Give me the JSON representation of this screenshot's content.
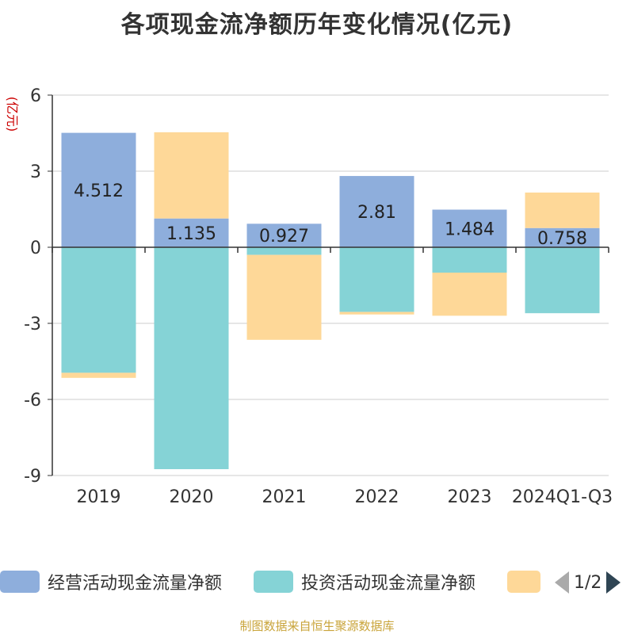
{
  "title": "各项现金流净额历年变化情况(亿元)",
  "source_note": "制图数据来自恒生聚源数据库",
  "pager": {
    "text": "1/2"
  },
  "colors": {
    "operating": "#8eaedc",
    "investing": "#85d3d6",
    "financing": "#fed898",
    "axis": "#333333",
    "grid": "#cccccc",
    "ylabel": "#cc0000"
  },
  "chart_data": {
    "type": "bar",
    "stacked": true,
    "title": "各项现金流净额历年变化情况(亿元)",
    "ylabel": "(亿元)",
    "ylim": [
      -9,
      6
    ],
    "yticks": [
      6,
      3,
      0,
      -3,
      -6,
      -9
    ],
    "grid": true,
    "legend_position": "bottom",
    "categories": [
      "2019",
      "2020",
      "2021",
      "2022",
      "2023",
      "2024Q1-Q3"
    ],
    "series": [
      {
        "name": "经营活动现金流量净额",
        "color": "#8eaedc",
        "values": [
          4.512,
          1.135,
          0.927,
          2.81,
          1.484,
          0.758
        ],
        "show_labels": true
      },
      {
        "name": "投资活动现金流量净额",
        "color": "#85d3d6",
        "values": [
          -4.95,
          -8.75,
          -0.3,
          -2.55,
          -1.0,
          -2.6
        ],
        "show_labels": false
      },
      {
        "name": "",
        "color": "#fed898",
        "values": [
          -0.2,
          3.4,
          -3.35,
          -0.1,
          -1.7,
          1.4
        ],
        "show_labels": false
      }
    ]
  },
  "legend": [
    {
      "label": "经营活动现金流量净额",
      "color": "#8eaedc"
    },
    {
      "label": "投资活动现金流量净额",
      "color": "#85d3d6"
    },
    {
      "label": "",
      "color": "#fed898"
    }
  ]
}
